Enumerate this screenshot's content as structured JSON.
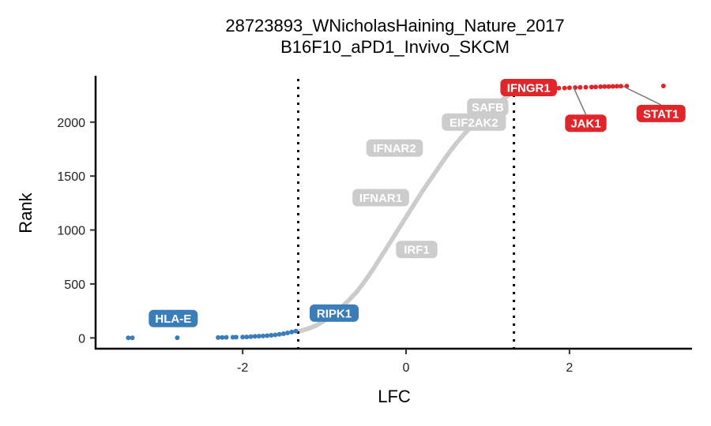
{
  "chart_data": {
    "type": "scatter",
    "title": "28723893_WNicholasHaining_Nature_2017",
    "subtitle": "B16F10_aPD1_Invivo_SKCM",
    "xlabel": "LFC",
    "ylabel": "Rank",
    "xlim": [
      -3.8,
      3.5
    ],
    "ylim": [
      -100,
      2430
    ],
    "x_ticks": [
      -2,
      0,
      2
    ],
    "x_tick_labels": [
      "-2",
      "0",
      "2"
    ],
    "y_ticks": [
      0,
      500,
      1000,
      1500,
      2000
    ],
    "y_tick_labels": [
      "0",
      "500",
      "1000",
      "1500",
      "2000"
    ],
    "thresholds": [
      -1.32,
      1.32
    ],
    "grid": false,
    "legend": "none",
    "colors": {
      "down": "#3a7db9",
      "up": "#e0262a",
      "neutral": "#cccccc",
      "threshold": "#000000"
    },
    "series": [
      {
        "group": "down",
        "color": "#3a7db9",
        "x": [
          -3.4,
          -3.35,
          -2.8,
          -2.3,
          -2.25,
          -2.2,
          -2.12,
          -2.08,
          -2.0,
          -1.95,
          -1.9,
          -1.85,
          -1.8,
          -1.75,
          -1.7,
          -1.65,
          -1.6,
          -1.55,
          -1.5,
          -1.45,
          -1.4,
          -1.35
        ],
        "y": [
          0,
          1,
          2,
          3,
          4,
          5,
          6,
          7,
          8,
          9,
          12,
          14,
          16,
          18,
          21,
          24,
          28,
          33,
          39,
          46,
          54,
          62
        ]
      },
      {
        "group": "neutral",
        "color": "#cccccc",
        "curve": [
          [
            -1.32,
            60
          ],
          [
            -1.2,
            85
          ],
          [
            -1.1,
            115
          ],
          [
            -1.0,
            160
          ],
          [
            -0.9,
            210
          ],
          [
            -0.8,
            275
          ],
          [
            -0.7,
            350
          ],
          [
            -0.6,
            430
          ],
          [
            -0.5,
            530
          ],
          [
            -0.4,
            640
          ],
          [
            -0.3,
            760
          ],
          [
            -0.2,
            880
          ],
          [
            -0.1,
            1000
          ],
          [
            0.0,
            1120
          ],
          [
            0.1,
            1240
          ],
          [
            0.2,
            1360
          ],
          [
            0.3,
            1470
          ],
          [
            0.4,
            1580
          ],
          [
            0.5,
            1690
          ],
          [
            0.6,
            1790
          ],
          [
            0.7,
            1880
          ],
          [
            0.8,
            1960
          ],
          [
            0.9,
            2030
          ],
          [
            1.0,
            2100
          ],
          [
            1.1,
            2160
          ],
          [
            1.2,
            2220
          ],
          [
            1.32,
            2285
          ]
        ]
      },
      {
        "group": "up",
        "color": "#e0262a",
        "x": [
          1.35,
          1.42,
          1.5,
          1.58,
          1.65,
          1.72,
          1.8,
          1.87,
          1.94,
          2.0,
          2.07,
          2.13,
          2.2,
          2.27,
          2.32,
          2.38,
          2.43,
          2.48,
          2.53,
          2.58,
          2.63,
          2.7,
          3.15
        ],
        "y": [
          2300,
          2303,
          2305,
          2307,
          2309,
          2311,
          2313,
          2315,
          2316,
          2318,
          2320,
          2322,
          2323,
          2325,
          2326,
          2328,
          2329,
          2330,
          2331,
          2332,
          2333,
          2334,
          2335
        ]
      }
    ],
    "annotations": [
      {
        "text": "HLA-E",
        "group": "down",
        "x": -2.85,
        "y": 180
      },
      {
        "text": "RIPK1",
        "group": "down",
        "x": -0.88,
        "y": 230
      },
      {
        "text": "IRF1",
        "group": "neutral",
        "x": 0.13,
        "y": 820
      },
      {
        "text": "IFNAR1",
        "group": "neutral",
        "x": -0.31,
        "y": 1300
      },
      {
        "text": "IFNAR2",
        "group": "neutral",
        "x": -0.14,
        "y": 1760
      },
      {
        "text": "EIF2AK2",
        "group": "neutral",
        "x": 0.83,
        "y": 2000
      },
      {
        "text": "SAFB",
        "group": "neutral",
        "x": 1.0,
        "y": 2140
      },
      {
        "text": "IFNGR1",
        "group": "up",
        "x": 1.5,
        "y": 2320
      },
      {
        "text": "JAK1",
        "group": "up",
        "x": 2.2,
        "y": 1990,
        "point_x": 2.05,
        "point_y": 2322
      },
      {
        "text": "STAT1",
        "group": "up",
        "x": 3.12,
        "y": 2080,
        "point_x": 2.65,
        "point_y": 2334
      }
    ]
  }
}
